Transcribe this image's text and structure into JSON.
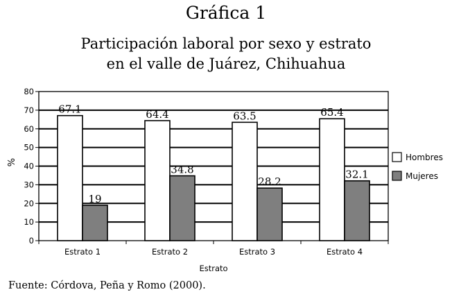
{
  "figure_label": "Gráfica 1",
  "title_lines": [
    "Participación laboral por sexo y estrato",
    "en el valle de Juárez, Chihuahua"
  ],
  "source": "Fuente: Córdova, Peña y Romo (2000).",
  "chart_data": {
    "type": "bar",
    "title": "Participación laboral por sexo y estrato en el valle de Juárez, Chihuahua",
    "xlabel": "Estrato",
    "ylabel": "%",
    "categories": [
      "Estrato 1",
      "Estrato 2",
      "Estrato 3",
      "Estrato 4"
    ],
    "series": [
      {
        "name": "Hombres",
        "values": [
          67.1,
          64.4,
          63.5,
          65.4
        ],
        "labels": [
          "67.1",
          "64.4",
          "63.5",
          "65.4"
        ],
        "color": "#ffffff"
      },
      {
        "name": "Mujeres",
        "values": [
          19,
          34.8,
          28.2,
          32.1
        ],
        "labels": [
          "19",
          "34.8",
          "28.2",
          "32.1"
        ],
        "color": "#7f7f7f"
      }
    ],
    "ylim": [
      0,
      80
    ],
    "yticks": [
      0,
      10,
      20,
      30,
      40,
      50,
      60,
      70,
      80
    ],
    "grid": true,
    "legend_position": "right"
  }
}
